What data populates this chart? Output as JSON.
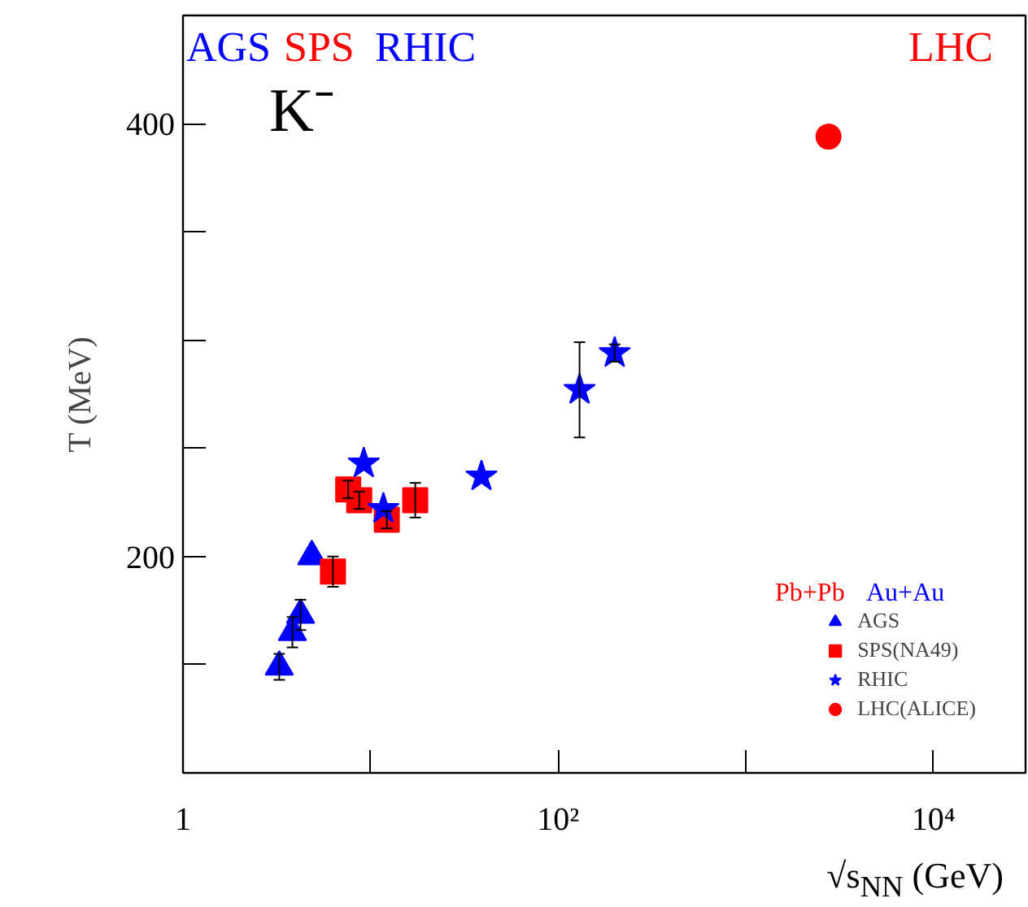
{
  "chart_data": {
    "type": "scatter",
    "xlabel": "√s$_{NN}$ (GeV)",
    "ylabel": "T (MeV)",
    "log": "x",
    "xlim": [
      1,
      31000
    ],
    "ylim": [
      100,
      450
    ],
    "xticks": [
      1,
      {
        "value": 10,
        "label": null
      },
      {
        "value": 100,
        "label": "10²"
      },
      {
        "value": 1000,
        "label": null
      },
      {
        "value": 10000,
        "label": "10⁴"
      }
    ],
    "yticks": [
      {
        "value": 150,
        "label": null
      },
      200,
      {
        "value": 250,
        "label": null
      },
      {
        "value": 300,
        "label": null
      },
      {
        "value": 350,
        "label": null
      },
      400
    ],
    "grid": false,
    "legend": "bottom right",
    "annotations": [
      "AGS",
      "SPS",
      "RHIC",
      "LHC",
      "K⁻",
      "Pb+Pb",
      "Au+Au"
    ],
    "series": [
      {
        "name": "AGS",
        "color": "#0000ff",
        "marker": "triangle",
        "x": [
          3.26,
          3.83,
          4.23,
          4.86
        ],
        "values": [
          149,
          165,
          173,
          200
        ],
        "errors": [
          6,
          7,
          7,
          null
        ]
      },
      {
        "name": "SPS(NA49)",
        "color": "#ff0000",
        "marker": "square",
        "x": [
          6.3,
          7.6,
          8.7,
          12.2,
          17.3
        ],
        "values": [
          193,
          231,
          226,
          217,
          226
        ],
        "errors": [
          7,
          4,
          4,
          4,
          8
        ]
      },
      {
        "name": "RHIC",
        "color": "#0000ff",
        "marker": "star",
        "x": [
          9.2,
          11.7,
          39,
          130,
          200
        ],
        "values": [
          243,
          222,
          237,
          277,
          294
        ],
        "errors": [
          null,
          null,
          null,
          22,
          4
        ]
      },
      {
        "name": "LHC(ALICE)",
        "color": "#ff0000",
        "marker": "circle",
        "x": [
          2760
        ],
        "values": [
          394
        ],
        "errors": [
          null
        ]
      }
    ]
  }
}
